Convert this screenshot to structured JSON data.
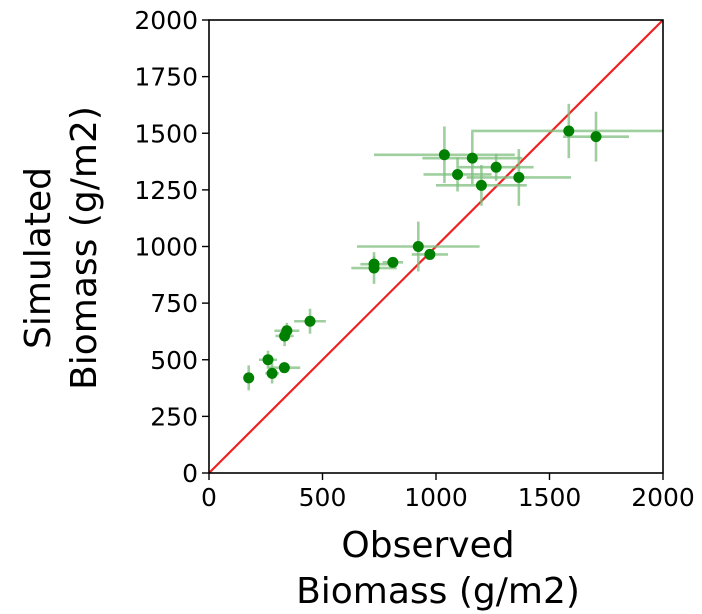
{
  "chart_data": {
    "type": "scatter",
    "title": "",
    "xlabel_lines": [
      "Observed",
      "Biomass  (g/m2)"
    ],
    "ylabel_lines": [
      "Simulated",
      "Biomass (g/m2)"
    ],
    "xlim": [
      0,
      2000
    ],
    "ylim": [
      0,
      2000
    ],
    "xticks": [
      0,
      500,
      1000,
      1500,
      2000
    ],
    "yticks": [
      0,
      250,
      500,
      750,
      1000,
      1250,
      1500,
      1750,
      2000
    ],
    "grid": false,
    "one_to_one_line": {
      "from": [
        0,
        0
      ],
      "to": [
        2000,
        2000
      ],
      "color": "#ee2222"
    },
    "point_color": "#008000",
    "errorbar_color": "#7fbf7f",
    "points": [
      {
        "x": 175,
        "y": 420,
        "xerr": 0,
        "yerr": 55
      },
      {
        "x": 260,
        "y": 500,
        "xerr": 40,
        "yerr": 40
      },
      {
        "x": 278,
        "y": 440,
        "xerr": 30,
        "yerr": 45
      },
      {
        "x": 332,
        "y": 465,
        "xerr": 70,
        "yerr": 20
      },
      {
        "x": 333,
        "y": 605,
        "xerr": 40,
        "yerr": 45
      },
      {
        "x": 343,
        "y": 628,
        "xerr": 55,
        "yerr": 35
      },
      {
        "x": 445,
        "y": 670,
        "xerr": 70,
        "yerr": 55
      },
      {
        "x": 727,
        "y": 905,
        "xerr": 100,
        "yerr": 70
      },
      {
        "x": 727,
        "y": 922,
        "xerr": 60,
        "yerr": 35
      },
      {
        "x": 810,
        "y": 930,
        "xerr": 45,
        "yerr": 20
      },
      {
        "x": 922,
        "y": 1000,
        "xerr": 270,
        "yerr": 110
      },
      {
        "x": 973,
        "y": 965,
        "xerr": 80,
        "yerr": 20
      },
      {
        "x": 1037,
        "y": 1405,
        "xerr": 310,
        "yerr": 125
      },
      {
        "x": 1095,
        "y": 1318,
        "xerr": 150,
        "yerr": 75
      },
      {
        "x": 1160,
        "y": 1390,
        "xerr": 220,
        "yerr": 115
      },
      {
        "x": 1200,
        "y": 1270,
        "xerr": 200,
        "yerr": 90
      },
      {
        "x": 1265,
        "y": 1350,
        "xerr": 165,
        "yerr": 60
      },
      {
        "x": 1365,
        "y": 1305,
        "xerr": 230,
        "yerr": 125
      },
      {
        "x": 1585,
        "y": 1510,
        "xerr": 430,
        "yerr": 120
      },
      {
        "x": 1705,
        "y": 1485,
        "xerr": 145,
        "yerr": 110
      }
    ]
  }
}
